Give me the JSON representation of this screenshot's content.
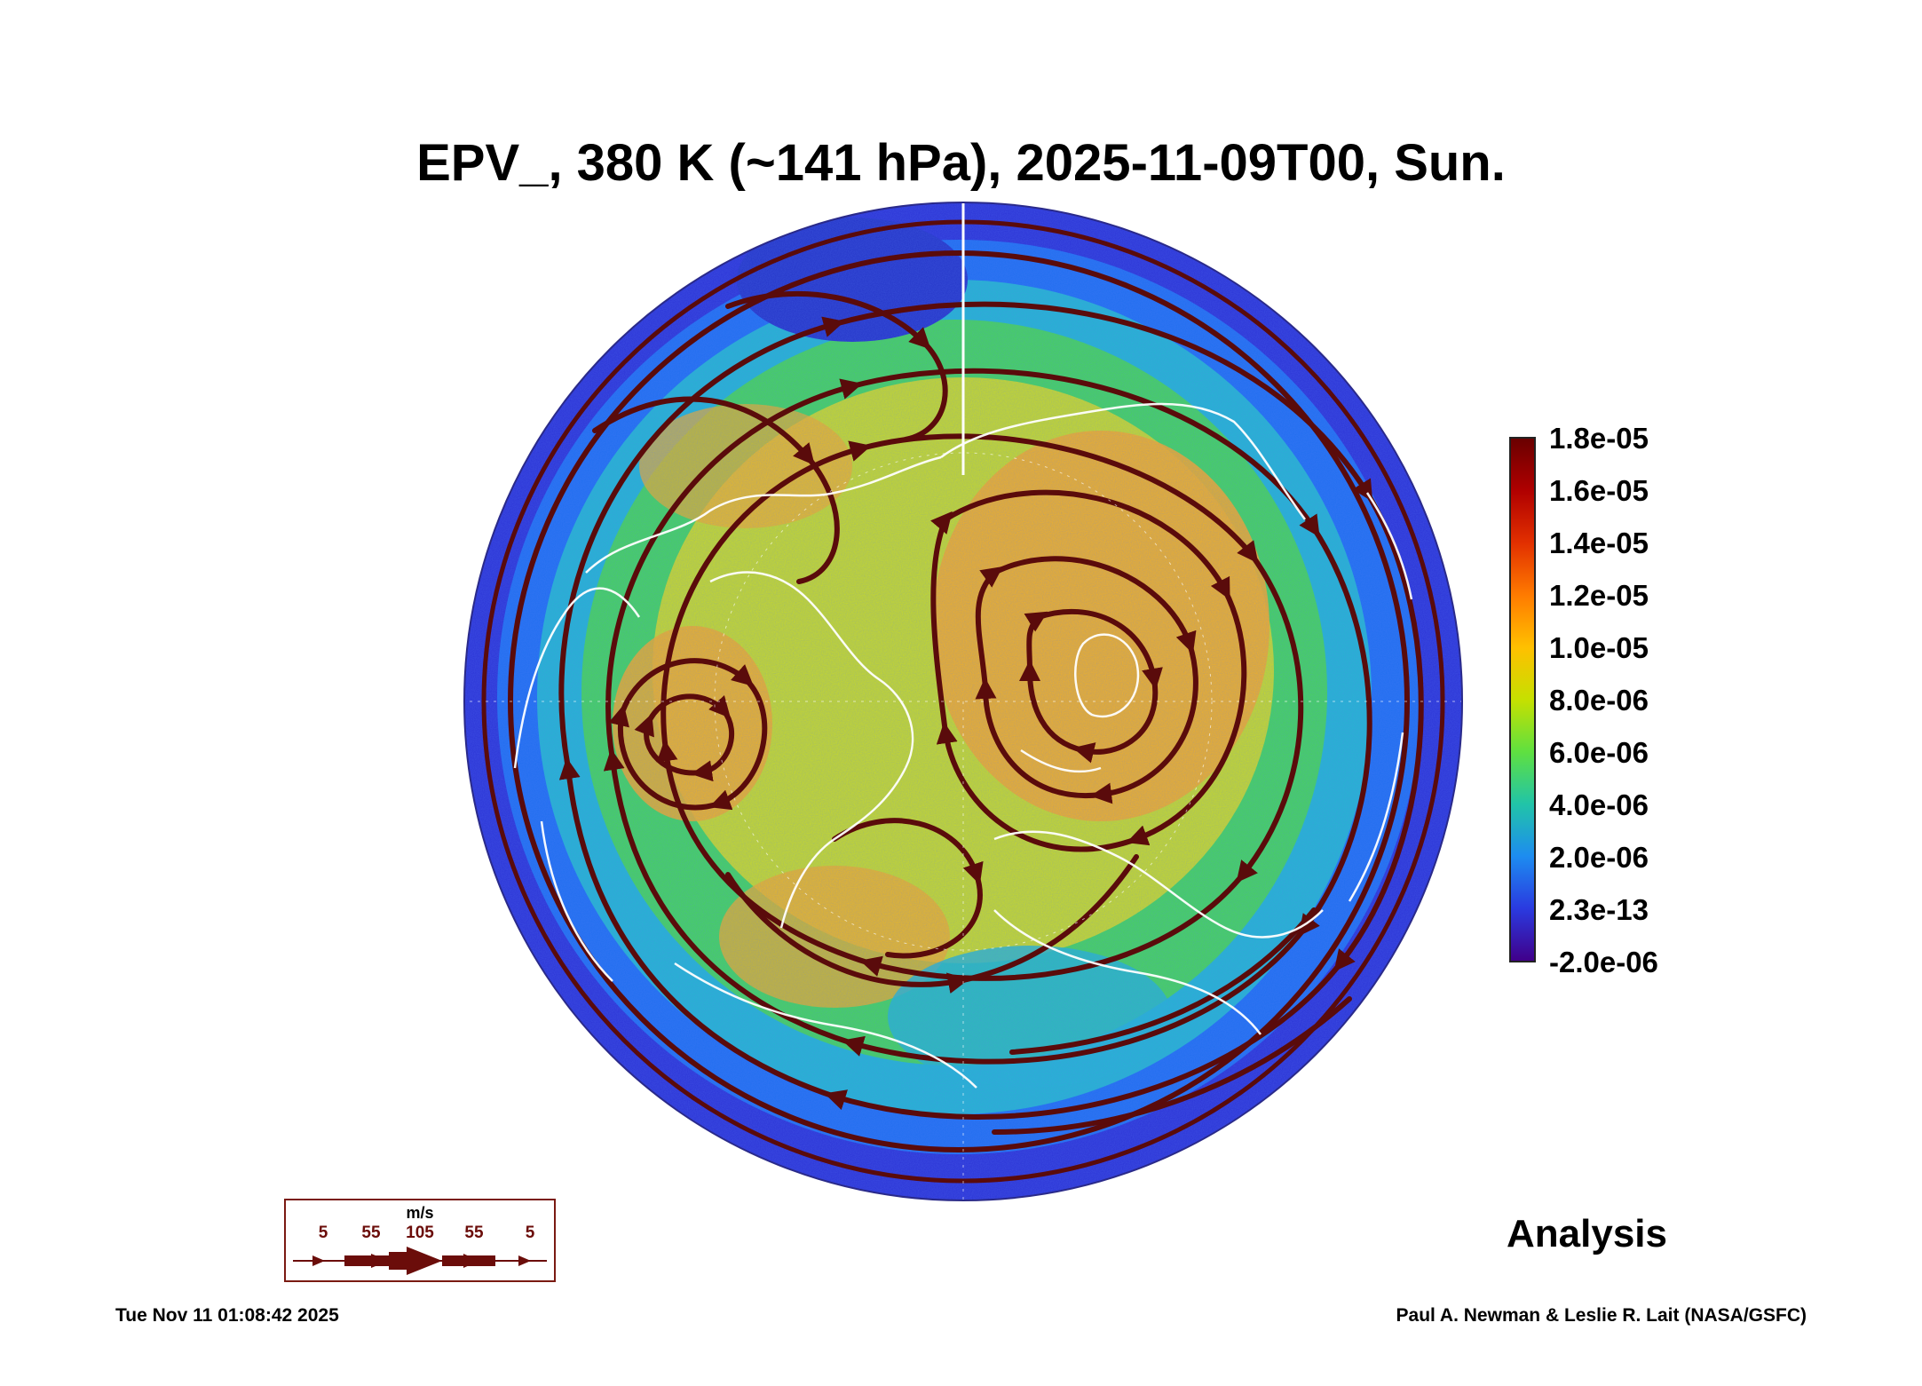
{
  "title": "EPV_, 380 K (~141 hPa), 2025-11-09T00, Sun.",
  "colorbar": {
    "labels": [
      "1.8e-05",
      "1.6e-05",
      "1.4e-05",
      "1.2e-05",
      "1.0e-05",
      "8.0e-06",
      "6.0e-06",
      "4.0e-06",
      "2.0e-06",
      "2.3e-13",
      "-2.0e-06"
    ],
    "colors": [
      "#6a0000",
      "#b00000",
      "#e23000",
      "#ff7b00",
      "#ffc000",
      "#c6e000",
      "#5fe040",
      "#21c4a8",
      "#1d8cf0",
      "#2a3ae0",
      "#40008a"
    ]
  },
  "map": {
    "palette": {
      "outer": "#2b33d6",
      "blue": "#1f6ff0",
      "cyan": "#23b6cf",
      "green": "#45d657",
      "yellow": "#c9dc22",
      "orange": "#f6ac22",
      "stream": "#5a0b0b",
      "coast": "#ffffff"
    }
  },
  "wind_legend": {
    "unit": "m/s",
    "labels": [
      "5",
      "55",
      "105",
      "55",
      "5"
    ]
  },
  "label_analysis": "Analysis",
  "timestamp": "Tue Nov 11 01:08:42 2025",
  "credit": "Paul A. Newman & Leslie R. Lait (NASA/GSFC)"
}
